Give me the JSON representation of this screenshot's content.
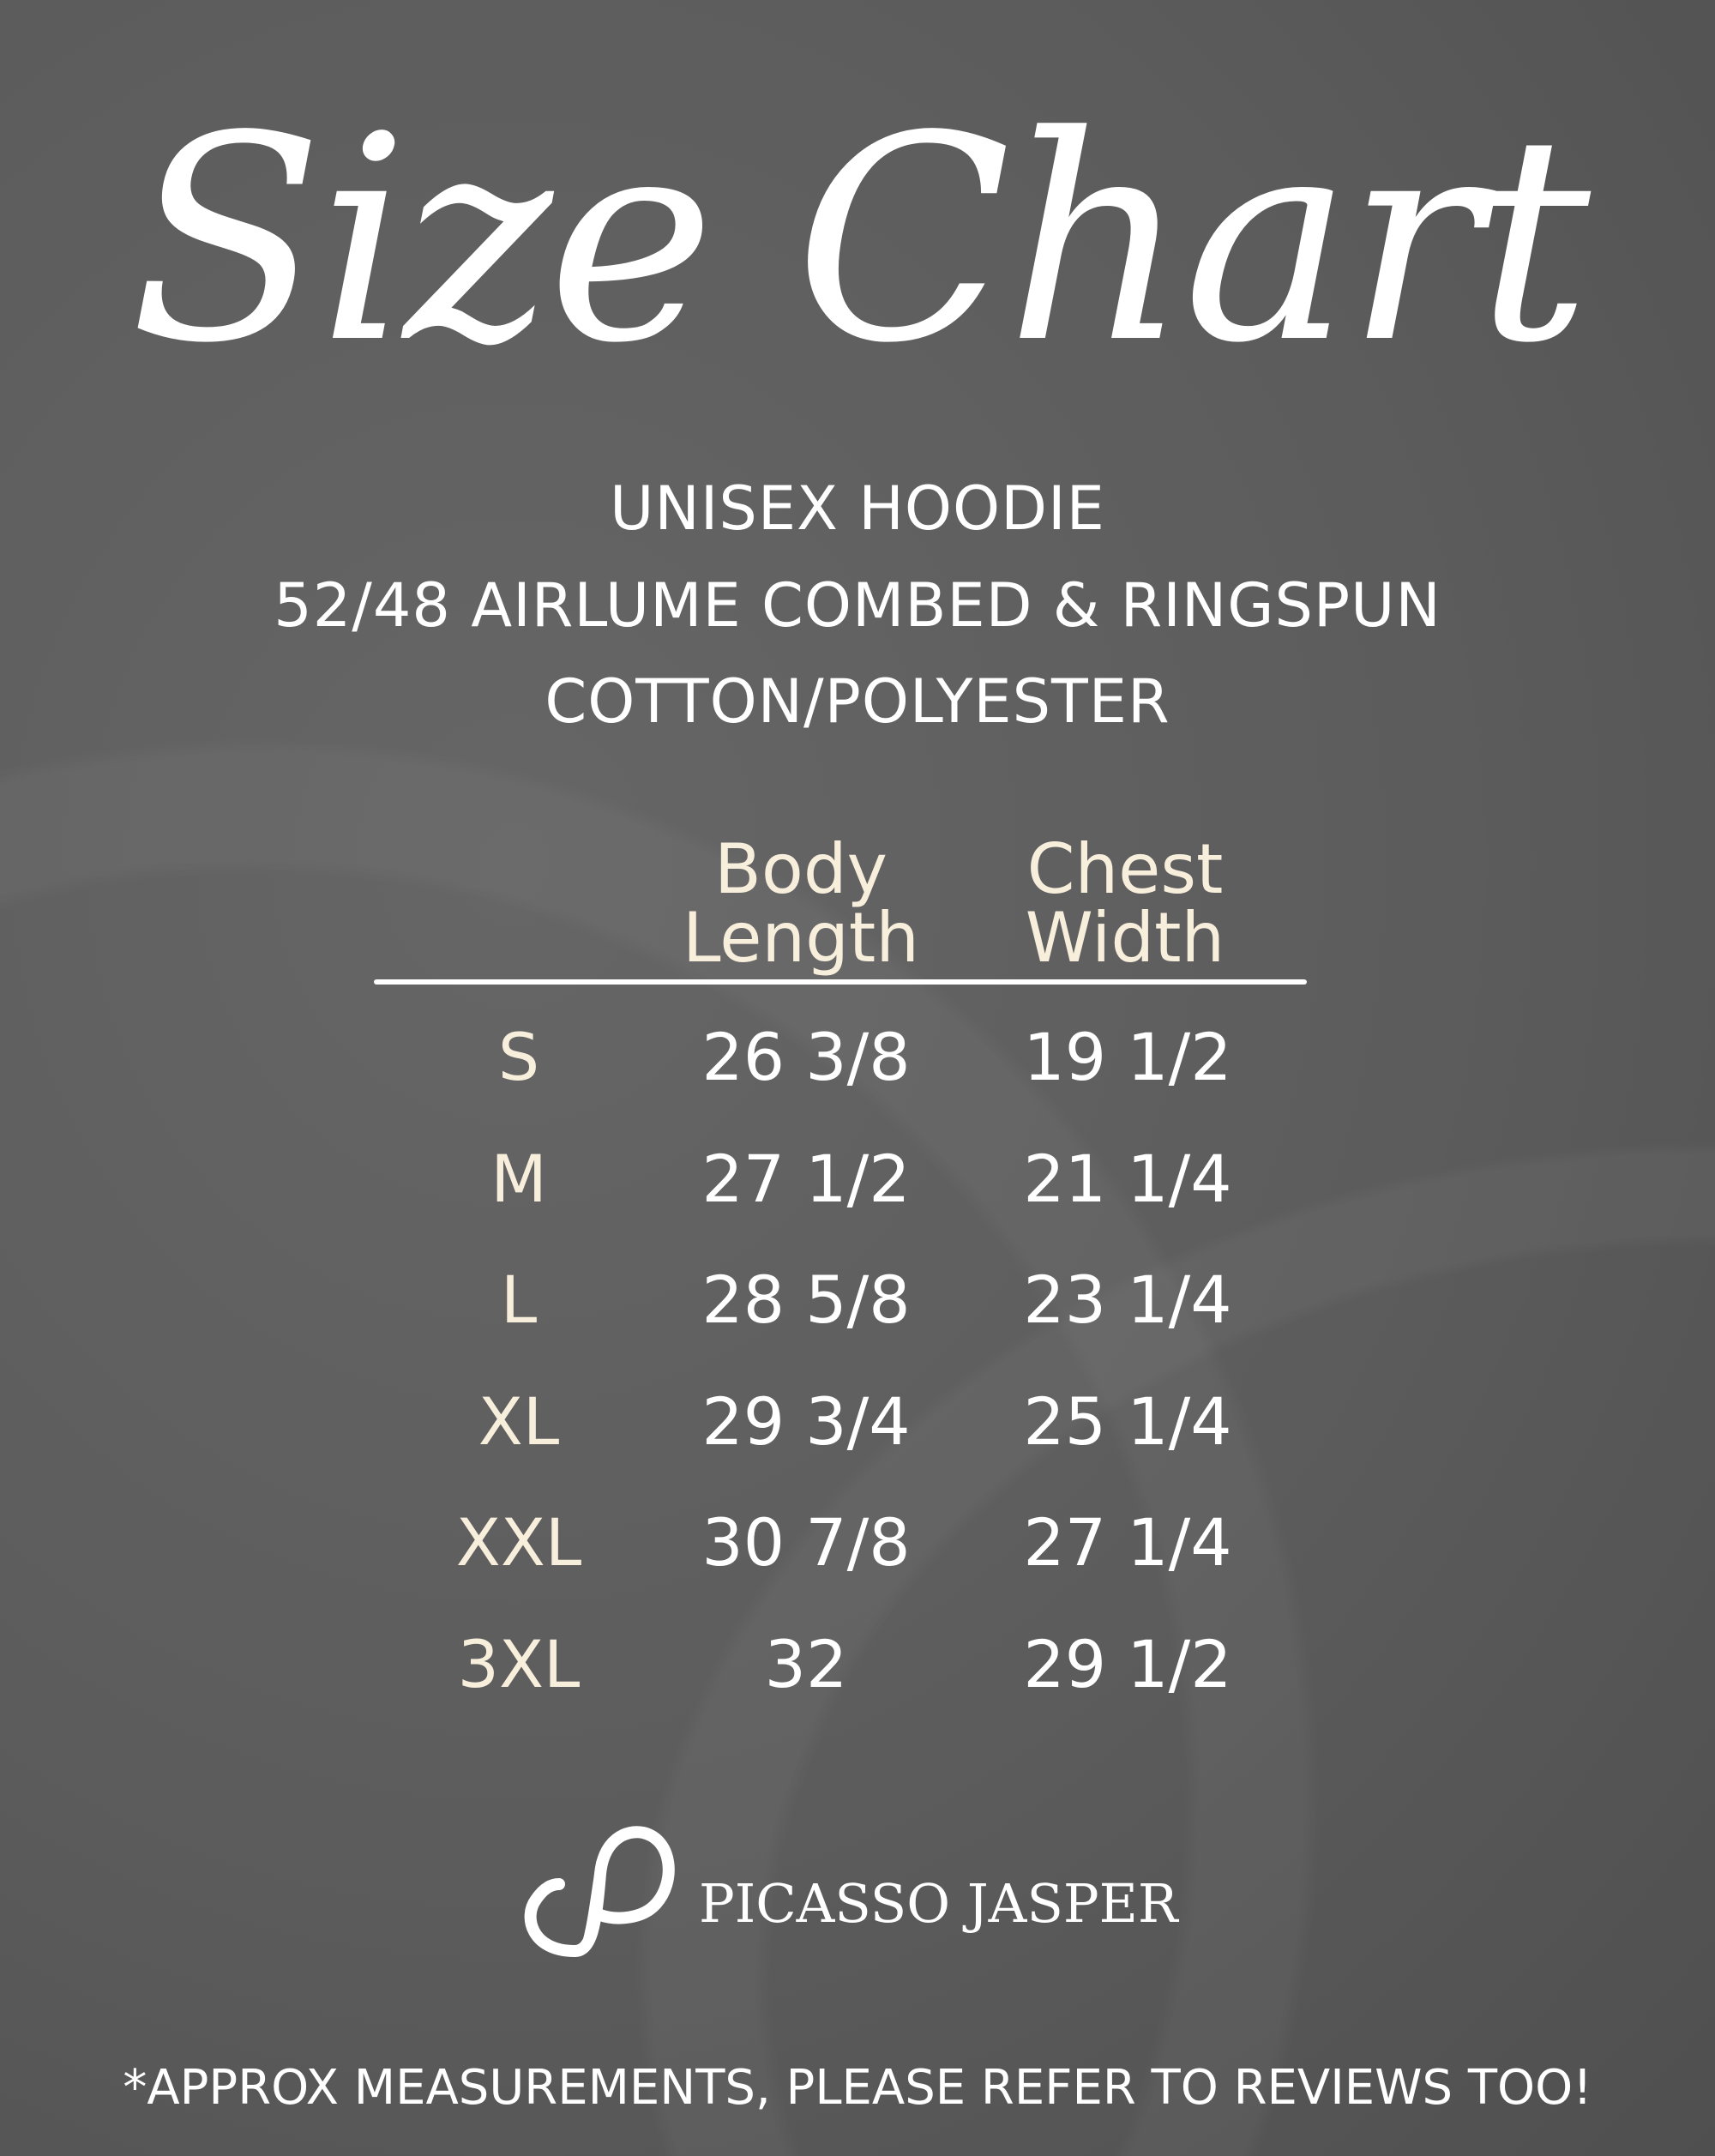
{
  "title": "Size Chart",
  "subtitle_lines": [
    "UNISEX HOODIE",
    "52/48 AIRLUME COMBED & RINGSPUN",
    "COTTON/POLYESTER"
  ],
  "table": {
    "headers": [
      {
        "line1": "Body",
        "line2": "Length"
      },
      {
        "line1": "Chest",
        "line2": "Width"
      }
    ],
    "rows": [
      {
        "size": "S",
        "body_length": "26 3/8",
        "chest_width": "19 1/2"
      },
      {
        "size": "M",
        "body_length": "27 1/2",
        "chest_width": "21 1/4"
      },
      {
        "size": "L",
        "body_length": "28 5/8",
        "chest_width": "23 1/4"
      },
      {
        "size": "XL",
        "body_length": "29 3/4",
        "chest_width": "25 1/4"
      },
      {
        "size": "XXL",
        "body_length": "30 7/8",
        "chest_width": "27 1/4"
      },
      {
        "size": "3XL",
        "body_length": "32",
        "chest_width": "29 1/2"
      }
    ]
  },
  "brand": {
    "name": "PICASSO JASPER",
    "logo_icon": "pj-monogram-logo"
  },
  "footer": "*APPROX MEASUREMENTS, PLEASE REFER TO REVIEWS TOO!",
  "colors": {
    "background": "#5e5e5e",
    "header_text": "#f8eedc",
    "value_text": "#ffffff"
  }
}
